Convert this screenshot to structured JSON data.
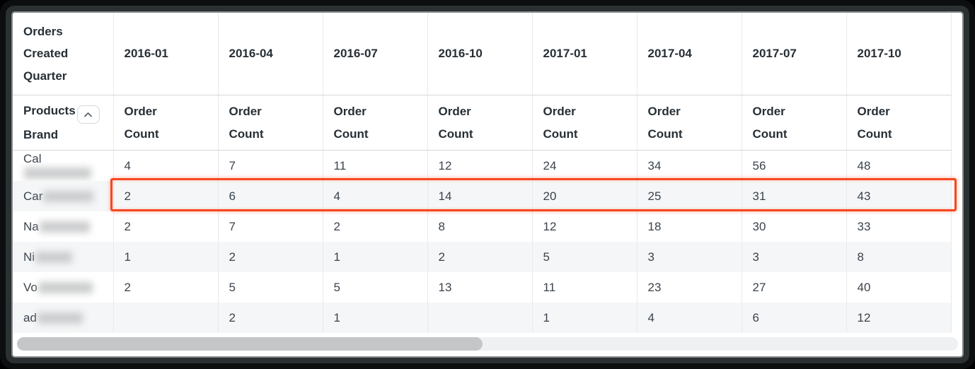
{
  "table": {
    "corner_label": "Orders Created Quarter",
    "row_dimension_label": "Products Brand",
    "metric_label": "Order Count",
    "quarters": [
      "2016-01",
      "2016-04",
      "2016-07",
      "2016-10",
      "2017-01",
      "2017-04",
      "2017-07",
      "2017-10"
    ],
    "rows": [
      {
        "label_prefix": "Cal",
        "redacted": true,
        "blur_width": 95,
        "highlighted": false,
        "values": [
          "4",
          "7",
          "11",
          "12",
          "24",
          "34",
          "56",
          "48"
        ]
      },
      {
        "label_prefix": "Car",
        "redacted": true,
        "blur_width": 71,
        "highlighted": true,
        "values": [
          "2",
          "6",
          "4",
          "14",
          "20",
          "25",
          "31",
          "43"
        ]
      },
      {
        "label_prefix": "Na",
        "redacted": true,
        "blur_width": 71,
        "highlighted": false,
        "values": [
          "2",
          "7",
          "2",
          "8",
          "12",
          "18",
          "30",
          "33"
        ]
      },
      {
        "label_prefix": "Ni",
        "redacted": true,
        "blur_width": 52,
        "highlighted": false,
        "values": [
          "1",
          "2",
          "1",
          "2",
          "5",
          "3",
          "3",
          "8"
        ]
      },
      {
        "label_prefix": "Vo",
        "redacted": true,
        "blur_width": 77,
        "highlighted": false,
        "values": [
          "2",
          "5",
          "5",
          "13",
          "11",
          "23",
          "27",
          "40"
        ]
      },
      {
        "label_prefix": "ad",
        "redacted": true,
        "blur_width": 64,
        "highlighted": false,
        "values": [
          "",
          "2",
          "1",
          "",
          "1",
          "4",
          "6",
          "12"
        ]
      }
    ]
  },
  "highlight": {
    "row_label_prefix": "Car",
    "border_color": "#f4481f"
  },
  "icons": {
    "collapse_row_header": "chevron-up-icon"
  },
  "scrollbar": {
    "orientation": "horizontal"
  },
  "colors": {
    "frame": "#2b3033",
    "panel_background": "#ffffff",
    "zebra_row": "#f5f6f7",
    "grid_line": "#e8eaeb",
    "header_text": "#272f36",
    "body_text": "#3a434c",
    "highlight_border": "#f4481f",
    "scrollbar_thumb": "#c4c6c8"
  }
}
